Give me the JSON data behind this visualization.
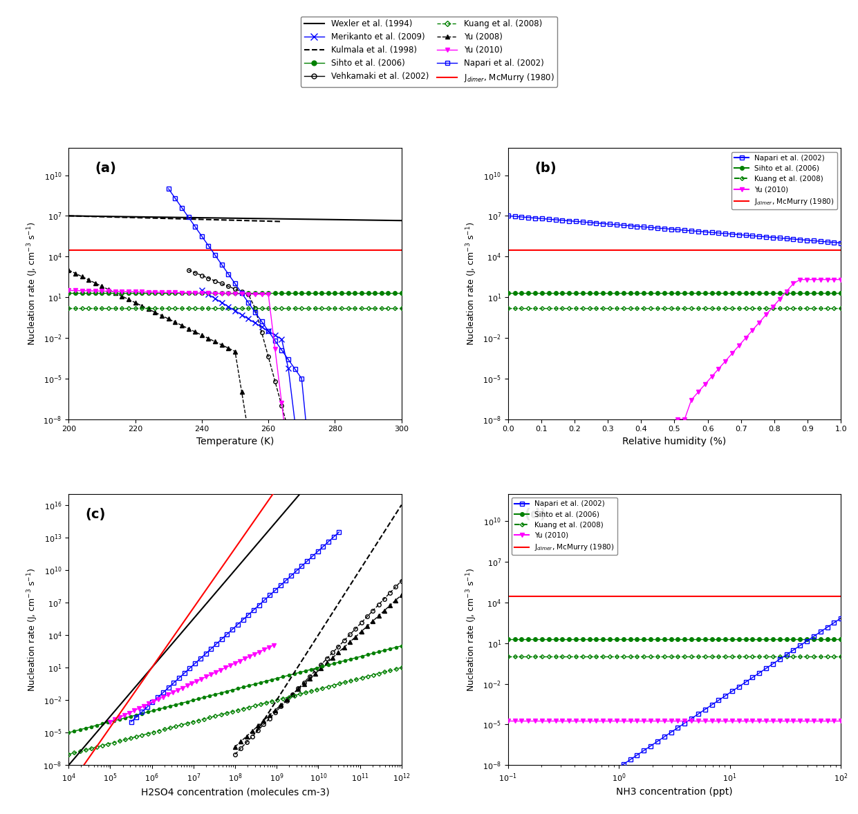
{
  "title": "",
  "background": "#ffffff",
  "panel_labels": [
    "(a)",
    "(b)",
    "(c)",
    "(d)"
  ],
  "ylabel": "Nucleation rate (J, cm-3 s-1)",
  "xlabels": [
    "Temperature (K)",
    "Relative humidity (%)",
    "H2SO4 concentration (molecules cm-3)",
    "NH3 concentration (ppt)"
  ],
  "colors": {
    "wexler": "black",
    "kulmala": "black",
    "vehkamaki": "black",
    "yu08": "black",
    "napari": "blue",
    "merikanto": "blue",
    "sihto": "green",
    "kuang": "green",
    "yu10": "magenta",
    "jdimer": "red"
  }
}
